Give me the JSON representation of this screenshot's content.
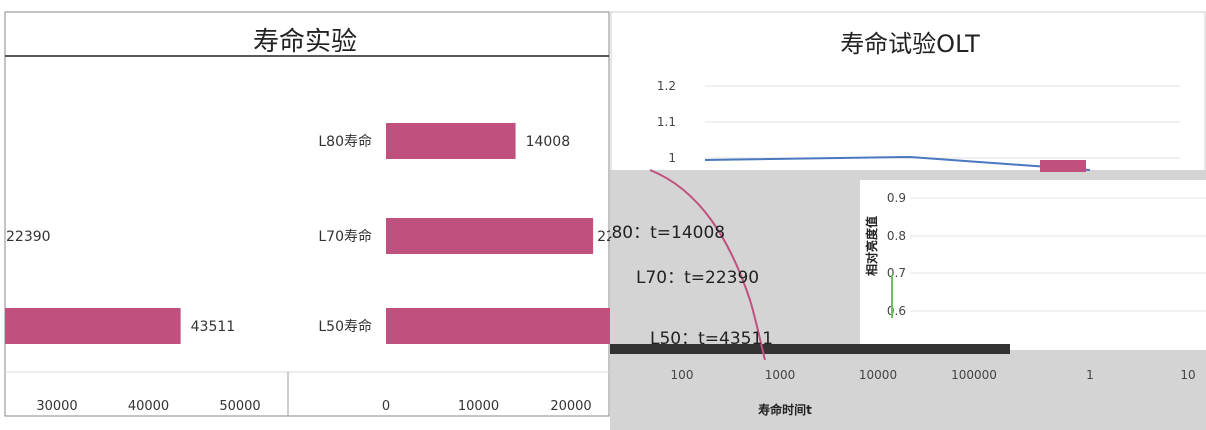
{
  "chart_data": [
    {
      "type": "bar",
      "orientation": "horizontal",
      "title": "寿命实验",
      "categories": [
        "L80寿命",
        "L70寿命",
        "L50寿命"
      ],
      "values": [
        14008,
        22390,
        43511
      ],
      "value_labels": [
        "14008",
        "22390",
        "43511"
      ],
      "xlim": [
        0,
        50000
      ],
      "x_ticks": [
        "0",
        "10000",
        "20000",
        "30000",
        "40000",
        "50000"
      ],
      "bar_color": "#c0507e"
    },
    {
      "type": "line",
      "title": "寿命试验OLT",
      "xlabel": "寿命时间t",
      "ylabel": "相对亮度值",
      "x_scale": "log",
      "x_ticks": [
        "1",
        "10",
        "100",
        "1000",
        "10000",
        "100000"
      ],
      "y_ticks": [
        "0.6",
        "0.7",
        "0.8",
        "0.9",
        "1",
        "1.1",
        "1.2"
      ],
      "annotations": [
        "L80：t=14008",
        "L70：t=22390",
        "L50：t=43511"
      ]
    }
  ]
}
